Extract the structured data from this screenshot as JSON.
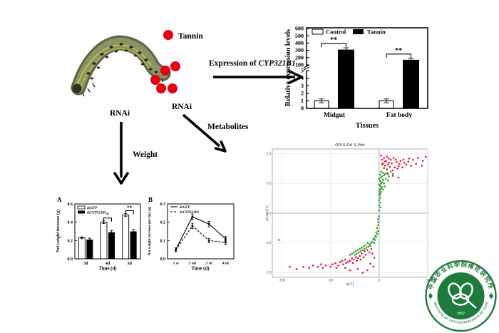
{
  "scene": {
    "tannin_label": "Tannin",
    "tannin_dot_color": "#e60012",
    "expression_label_prefix": "Expression of ",
    "expression_gene": "CYP321B1",
    "rnai_weight_label": "RNAi",
    "rnai_metabolites_label": "RNAi",
    "weight_label": "Weight",
    "metabolites_label": "Metabolites"
  },
  "chart_data": [
    {
      "id": "expression-bar-chart",
      "type": "bar",
      "ylabel": "Relative expression levels",
      "xlabel": "Tissues",
      "categories": [
        "Midgut",
        "Fat body"
      ],
      "series": [
        {
          "name": "Control",
          "fill": "#ffffff",
          "values": [
            1,
            1
          ],
          "errors": [
            0.25,
            0.25
          ]
        },
        {
          "name": "Tannin",
          "fill": "#000000",
          "values": [
            310,
            170
          ],
          "errors": [
            25,
            20
          ]
        }
      ],
      "axis_break": {
        "lower_range": [
          0,
          5
        ],
        "lower_ticks": [
          0,
          1,
          2,
          3,
          4,
          5
        ],
        "upper_range": [
          100,
          600
        ],
        "upper_ticks": [
          100,
          200,
          300,
          400,
          500,
          600
        ]
      },
      "significance": [
        {
          "category": "Midgut",
          "label": "**"
        },
        {
          "category": "Fat body",
          "label": "**"
        }
      ],
      "legend_position": "top-inside",
      "grid": false
    },
    {
      "id": "net-weight-increase-bars",
      "panel": "A",
      "type": "bar",
      "ylabel": "Net weight increase (g)",
      "xlabel": "Time (d)",
      "categories": [
        "3d",
        "4d",
        "5d"
      ],
      "ylim": [
        0,
        0.6
      ],
      "yticks": [
        0,
        0.2,
        0.4,
        0.6
      ],
      "series": [
        {
          "name": "dsGFP",
          "fill": "#ffffff",
          "values": [
            0.23,
            0.4,
            0.48
          ],
          "errors": [
            0.01,
            0.015,
            0.015
          ]
        },
        {
          "name": "dsCYP321B1",
          "fill": "#000000",
          "values": [
            0.21,
            0.29,
            0.3
          ],
          "errors": [
            0.015,
            0.02,
            0.02
          ]
        }
      ],
      "significance": [
        {
          "category": "4d",
          "label": "*"
        },
        {
          "category": "5d",
          "label": "**"
        }
      ],
      "legend_position": "top-left-inside",
      "grid": false
    },
    {
      "id": "net-weight-increase-per-day-lines",
      "panel": "B",
      "type": "line",
      "ylabel": "Net weight increase per day (g)",
      "xlabel": "Time (d)",
      "categories": [
        "1 st",
        "2 nd",
        "3 rd",
        "4 th"
      ],
      "ylim": [
        0,
        0.3
      ],
      "yticks": [
        0,
        0.1,
        0.2,
        0.3
      ],
      "series": [
        {
          "name": "dsGFP",
          "style": "solid",
          "values": [
            0.05,
            0.23,
            0.19,
            0.11
          ],
          "errors": [
            0.01,
            0.015,
            0.015,
            0.012
          ]
        },
        {
          "name": "dsCYP321B1",
          "style": "dashed",
          "values": [
            0.05,
            0.18,
            0.1,
            0.09
          ],
          "errors": [
            0.01,
            0.015,
            0.012,
            0.012
          ]
        }
      ],
      "legend_position": "top-left-inside",
      "grid": false
    },
    {
      "id": "opls-da-s-plot",
      "type": "scatter",
      "title": "OPLS-DA S-Plot",
      "xlabel": "p[1]",
      "ylabel": "p(corr)[1]",
      "xlim": [
        -110,
        50
      ],
      "ylim": [
        -1.08,
        1.08
      ],
      "xticks": [
        -100,
        -50,
        0,
        50
      ],
      "yticks": [
        -1.0,
        -0.5,
        0.0,
        0.5,
        1.0
      ],
      "ref_lines": {
        "x": 0,
        "y": 0
      },
      "grid": true,
      "series": [
        {
          "name": "red-points",
          "color": "#e8112d",
          "points": [
            [
              2,
              0.97
            ],
            [
              5,
              0.93
            ],
            [
              8,
              0.95
            ],
            [
              3,
              0.9
            ],
            [
              7,
              0.88
            ],
            [
              12,
              0.9
            ],
            [
              15,
              0.93
            ],
            [
              10,
              0.85
            ],
            [
              4,
              0.84
            ],
            [
              6,
              0.8
            ],
            [
              9,
              0.82
            ],
            [
              13,
              0.84
            ],
            [
              18,
              0.86
            ],
            [
              22,
              0.88
            ],
            [
              25,
              0.9
            ],
            [
              30,
              0.87
            ],
            [
              35,
              0.9
            ],
            [
              40,
              0.93
            ],
            [
              48,
              0.95
            ],
            [
              28,
              0.82
            ],
            [
              33,
              0.8
            ],
            [
              20,
              0.79
            ],
            [
              16,
              0.77
            ],
            [
              11,
              0.78
            ],
            [
              5,
              0.76
            ],
            [
              8,
              0.74
            ],
            [
              14,
              0.72
            ],
            [
              19,
              0.75
            ],
            [
              24,
              0.77
            ],
            [
              38,
              0.83
            ],
            [
              44,
              0.8
            ],
            [
              3,
              0.82
            ],
            [
              6,
              0.87
            ],
            [
              10,
              0.92
            ],
            [
              17,
              0.9
            ],
            [
              21,
              0.83
            ],
            [
              26,
              0.85
            ],
            [
              31,
              0.92
            ],
            [
              45,
              0.88
            ],
            [
              14,
              0.63
            ],
            [
              20,
              0.6
            ],
            [
              9,
              0.66
            ],
            [
              -8,
              -0.6
            ],
            [
              -12,
              -0.62
            ],
            [
              -10,
              -0.66
            ],
            [
              -15,
              -0.64
            ],
            [
              -14,
              -0.7
            ],
            [
              -18,
              -0.68
            ],
            [
              -16,
              -0.74
            ],
            [
              -20,
              -0.72
            ],
            [
              -22,
              -0.76
            ],
            [
              -19,
              -0.78
            ],
            [
              -24,
              -0.74
            ],
            [
              -26,
              -0.78
            ],
            [
              -23,
              -0.8
            ],
            [
              -28,
              -0.76
            ],
            [
              -30,
              -0.8
            ],
            [
              -27,
              -0.84
            ],
            [
              -32,
              -0.82
            ],
            [
              -35,
              -0.78
            ],
            [
              -34,
              -0.84
            ],
            [
              -38,
              -0.8
            ],
            [
              -37,
              -0.86
            ],
            [
              -40,
              -0.82
            ],
            [
              -42,
              -0.88
            ],
            [
              -45,
              -0.84
            ],
            [
              -48,
              -0.86
            ],
            [
              -50,
              -0.9
            ],
            [
              -44,
              -0.92
            ],
            [
              -55,
              -0.88
            ],
            [
              -58,
              -0.92
            ],
            [
              -60,
              -0.86
            ],
            [
              -63,
              -0.9
            ],
            [
              -68,
              -0.88
            ],
            [
              -72,
              -0.92
            ],
            [
              -78,
              -0.9
            ],
            [
              -85,
              -0.94
            ],
            [
              -92,
              -0.9
            ],
            [
              -12,
              -0.96
            ],
            [
              -22,
              -0.94
            ],
            [
              -30,
              -0.96
            ],
            [
              -17,
              -1.0
            ],
            [
              -35,
              -0.92
            ],
            [
              -9,
              -0.85
            ],
            [
              -6,
              -0.9
            ],
            [
              -5,
              -0.75
            ],
            [
              -7,
              -0.68
            ]
          ]
        },
        {
          "name": "green-points",
          "color": "#2ca02c",
          "points": [
            [
              2,
              0.7
            ],
            [
              4,
              0.68
            ],
            [
              1,
              0.65
            ],
            [
              3,
              0.62
            ],
            [
              5,
              0.64
            ],
            [
              2,
              0.6
            ],
            [
              0,
              0.58
            ],
            [
              4,
              0.56
            ],
            [
              1,
              0.54
            ],
            [
              3,
              0.52
            ],
            [
              2,
              0.5
            ],
            [
              0,
              0.48
            ],
            [
              1,
              0.46
            ],
            [
              3,
              0.44
            ],
            [
              2,
              0.42
            ],
            [
              1,
              0.4
            ],
            [
              0,
              0.38
            ],
            [
              2,
              0.36
            ],
            [
              1,
              0.34
            ],
            [
              0,
              0.32
            ],
            [
              1,
              0.3
            ],
            [
              6,
              0.66
            ],
            [
              8,
              0.68
            ],
            [
              10,
              0.62
            ],
            [
              7,
              0.58
            ],
            [
              9,
              0.55
            ],
            [
              5,
              0.5
            ],
            [
              6,
              0.45
            ],
            [
              4,
              0.4
            ],
            [
              1,
              0.26
            ],
            [
              0,
              0.22
            ],
            [
              1,
              0.18
            ],
            [
              0,
              0.14
            ],
            [
              1,
              0.1
            ],
            [
              0,
              0.05
            ],
            [
              12,
              0.7
            ],
            [
              14,
              0.66
            ],
            [
              0,
              -0.05
            ],
            [
              -1,
              -0.1
            ],
            [
              -1,
              -0.15
            ],
            [
              -1,
              -0.2
            ],
            [
              -2,
              -0.25
            ],
            [
              -1,
              -0.3
            ],
            [
              -3,
              -0.32
            ],
            [
              -2,
              -0.35
            ],
            [
              -4,
              -0.38
            ],
            [
              -3,
              -0.4
            ],
            [
              -5,
              -0.42
            ],
            [
              -4,
              -0.45
            ],
            [
              -6,
              -0.44
            ],
            [
              -7,
              -0.48
            ],
            [
              -5,
              -0.5
            ],
            [
              -8,
              -0.5
            ],
            [
              -10,
              -0.52
            ],
            [
              -12,
              -0.5
            ],
            [
              -9,
              -0.55
            ],
            [
              -11,
              -0.56
            ],
            [
              -14,
              -0.54
            ],
            [
              -13,
              -0.58
            ],
            [
              -16,
              -0.56
            ],
            [
              -15,
              -0.6
            ],
            [
              -18,
              -0.58
            ],
            [
              -17,
              -0.62
            ],
            [
              -20,
              -0.6
            ],
            [
              -22,
              -0.62
            ],
            [
              -19,
              -0.64
            ],
            [
              -21,
              -0.66
            ],
            [
              -24,
              -0.64
            ],
            [
              -23,
              -0.68
            ],
            [
              -26,
              -0.66
            ],
            [
              -25,
              -0.7
            ],
            [
              -28,
              -0.68
            ],
            [
              -30,
              -0.7
            ],
            [
              -103,
              -0.45
            ]
          ]
        }
      ]
    }
  ],
  "logo": {
    "top_text": "中国农业科学院棉花研究所",
    "bottom_text": "INSTITUTE OF COTTON RESEARCH OF CAAS",
    "year": "1957",
    "color": "#1f7a3d"
  }
}
